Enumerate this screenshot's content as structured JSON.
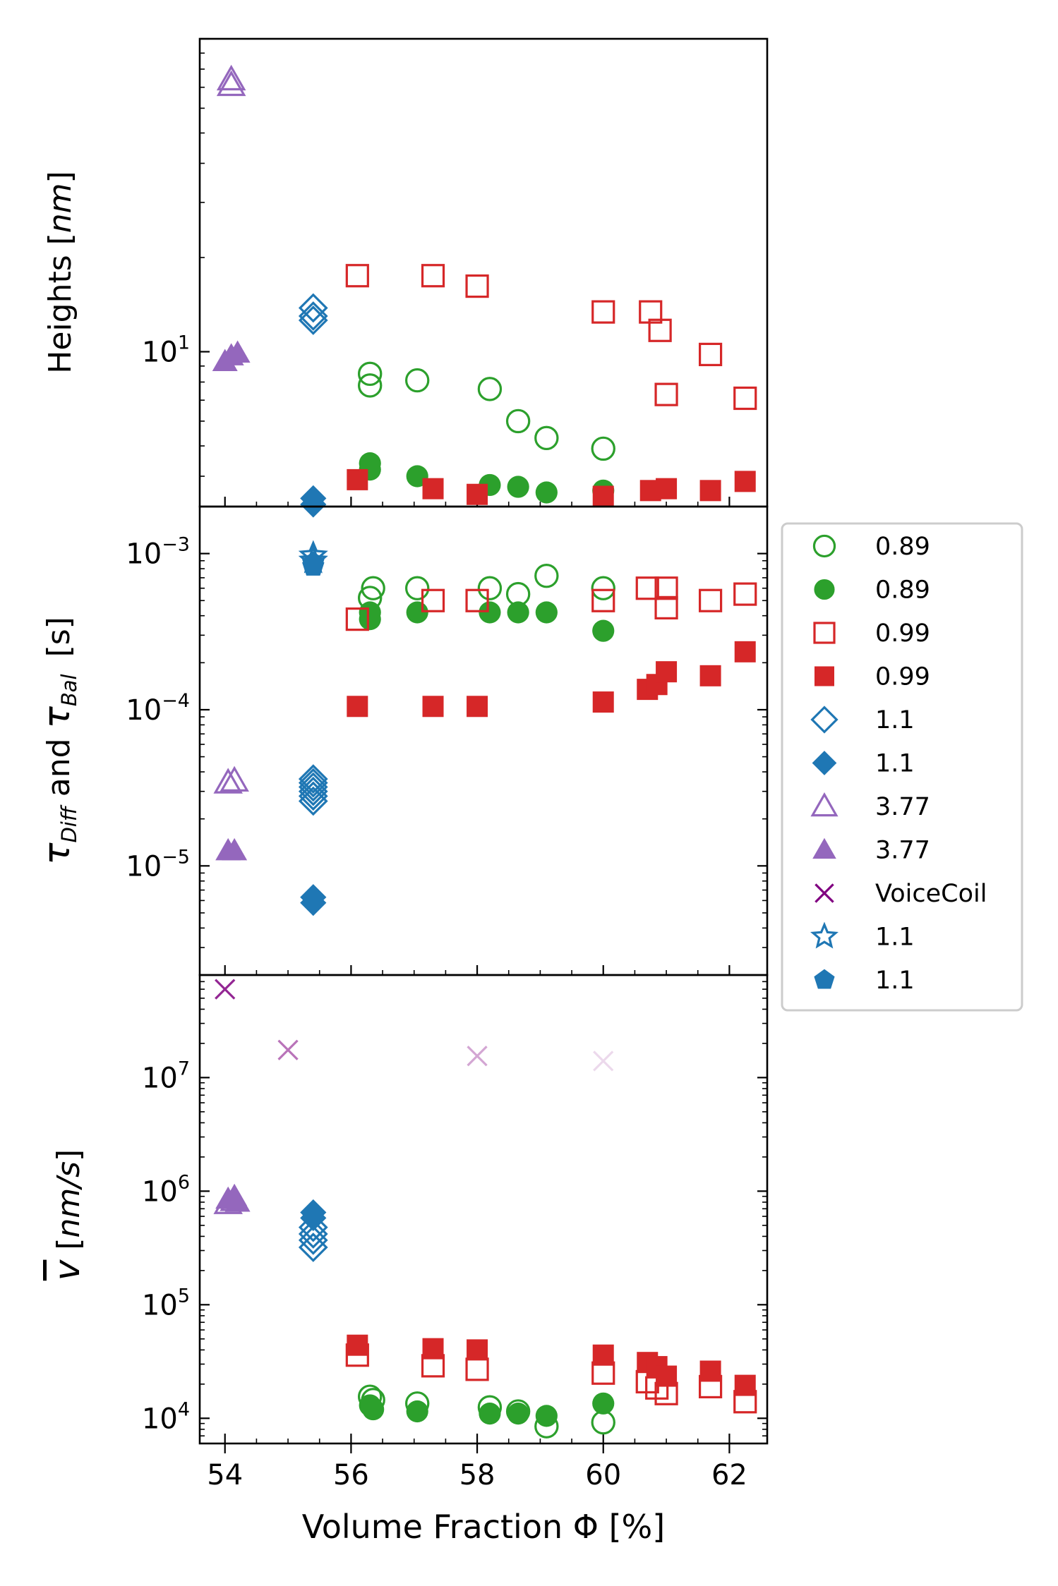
{
  "chart_data": [
    {
      "type": "scatter",
      "panel": "heights",
      "yscale": "log",
      "ylim": [
        3.2,
        100
      ],
      "xlim": [
        53.6,
        62.6
      ],
      "ylabel_plain": "Heights [",
      "ylabel_italic": "nm",
      "ylabel_close": "]",
      "y_ticks": [
        {
          "value": 10,
          "base": "10",
          "exp": "1"
        }
      ],
      "series": [
        {
          "name": "0.89",
          "marker": "circle",
          "filled": false,
          "color": "#2ca02c",
          "points": [
            [
              56.3,
              7.8
            ],
            [
              56.3,
              8.5
            ],
            [
              57.05,
              8.1
            ],
            [
              58.2,
              7.6
            ],
            [
              58.65,
              6.0
            ],
            [
              59.1,
              5.3
            ],
            [
              60.0,
              4.9
            ]
          ]
        },
        {
          "name": "0.89",
          "marker": "circle",
          "filled": true,
          "color": "#2ca02c",
          "points": [
            [
              56.3,
              4.2
            ],
            [
              56.3,
              4.4
            ],
            [
              57.05,
              4.0
            ],
            [
              58.2,
              3.75
            ],
            [
              58.65,
              3.7
            ],
            [
              59.1,
              3.55
            ],
            [
              60.0,
              3.6
            ]
          ]
        },
        {
          "name": "0.99",
          "marker": "square",
          "filled": false,
          "color": "#d62728",
          "points": [
            [
              56.1,
              17.5
            ],
            [
              57.3,
              17.5
            ],
            [
              58.0,
              16.2
            ],
            [
              60.0,
              13.4
            ],
            [
              60.75,
              13.4
            ],
            [
              60.9,
              11.7
            ],
            [
              61.0,
              7.3
            ],
            [
              61.7,
              9.8
            ],
            [
              62.25,
              7.1
            ]
          ]
        },
        {
          "name": "0.99",
          "marker": "square",
          "filled": true,
          "color": "#d62728",
          "points": [
            [
              56.1,
              3.9
            ],
            [
              57.3,
              3.65
            ],
            [
              58.0,
              3.5
            ],
            [
              60.0,
              3.45
            ],
            [
              60.75,
              3.6
            ],
            [
              61.0,
              3.65
            ],
            [
              61.7,
              3.6
            ],
            [
              62.25,
              3.85
            ]
          ]
        },
        {
          "name": "1.1",
          "marker": "diamond",
          "filled": false,
          "color": "#1f77b4",
          "points": [
            [
              55.4,
              13.0
            ],
            [
              55.4,
              13.8
            ],
            [
              55.4,
              12.6
            ]
          ]
        },
        {
          "name": "1.1",
          "marker": "diamond",
          "filled": true,
          "color": "#1f77b4",
          "points": [
            [
              55.4,
              3.4
            ],
            [
              55.4,
              3.25
            ]
          ]
        },
        {
          "name": "3.77",
          "marker": "triangle",
          "filled": false,
          "color": "#9467bd",
          "points": [
            [
              54.1,
              71
            ],
            [
              54.1,
              74
            ]
          ]
        },
        {
          "name": "3.77",
          "marker": "triangle",
          "filled": true,
          "color": "#9467bd",
          "points": [
            [
              54.0,
              9.3
            ],
            [
              54.1,
              9.7
            ],
            [
              54.2,
              9.9
            ]
          ]
        }
      ]
    },
    {
      "type": "scatter",
      "panel": "tau",
      "yscale": "log",
      "ylim": [
        2e-06,
        0.002
      ],
      "xlim": [
        53.6,
        62.6
      ],
      "ylabel_tau": "τ",
      "ylabel_sub1": "Diff",
      "ylabel_and": " and ",
      "ylabel_sub2": "Bal",
      "ylabel_unit": "[s]",
      "y_ticks": [
        {
          "value": 0.001,
          "base": "10",
          "exp": "−3"
        },
        {
          "value": 0.0001,
          "base": "10",
          "exp": "−4"
        },
        {
          "value": 1e-05,
          "base": "10",
          "exp": "−5"
        }
      ],
      "series": [
        {
          "name": "0.89",
          "marker": "circle",
          "filled": false,
          "color": "#2ca02c",
          "points": [
            [
              56.3,
              0.00052
            ],
            [
              56.35,
              0.0006
            ],
            [
              57.05,
              0.0006
            ],
            [
              58.2,
              0.0006
            ],
            [
              58.65,
              0.00055
            ],
            [
              59.1,
              0.00072
            ],
            [
              60.0,
              0.0006
            ]
          ]
        },
        {
          "name": "0.89",
          "marker": "circle",
          "filled": true,
          "color": "#2ca02c",
          "points": [
            [
              56.3,
              0.00038
            ],
            [
              56.3,
              0.00042
            ],
            [
              57.05,
              0.00042
            ],
            [
              58.2,
              0.00042
            ],
            [
              58.65,
              0.00042
            ],
            [
              59.1,
              0.00042
            ],
            [
              60.0,
              0.00032
            ]
          ]
        },
        {
          "name": "0.99",
          "marker": "square",
          "filled": false,
          "color": "#d62728",
          "points": [
            [
              56.1,
              0.00038
            ],
            [
              57.3,
              0.0005
            ],
            [
              58.0,
              0.0005
            ],
            [
              60.0,
              0.0005
            ],
            [
              60.7,
              0.0006
            ],
            [
              61.0,
              0.0006
            ],
            [
              61.0,
              0.00045
            ],
            [
              61.7,
              0.0005
            ],
            [
              62.25,
              0.00055
            ]
          ]
        },
        {
          "name": "0.99",
          "marker": "square",
          "filled": true,
          "color": "#d62728",
          "points": [
            [
              56.1,
              0.000105
            ],
            [
              57.3,
              0.000105
            ],
            [
              58.0,
              0.000105
            ],
            [
              60.0,
              0.000112
            ],
            [
              60.7,
              0.000135
            ],
            [
              60.85,
              0.000145
            ],
            [
              61.0,
              0.000175
            ],
            [
              61.7,
              0.000165
            ],
            [
              62.25,
              0.000235
            ]
          ]
        },
        {
          "name": "1.1",
          "marker": "diamond",
          "filled": false,
          "color": "#1f77b4",
          "points": [
            [
              55.4,
              2.6e-05
            ],
            [
              55.4,
              2.8e-05
            ],
            [
              55.4,
              3e-05
            ],
            [
              55.4,
              3.2e-05
            ],
            [
              55.4,
              3.4e-05
            ],
            [
              55.4,
              3.6e-05
            ]
          ]
        },
        {
          "name": "1.1",
          "marker": "diamond",
          "filled": true,
          "color": "#1f77b4",
          "points": [
            [
              55.4,
              6.3e-06
            ],
            [
              55.4,
              5.8e-06
            ]
          ]
        },
        {
          "name": "3.77",
          "marker": "triangle",
          "filled": false,
          "color": "#9467bd",
          "points": [
            [
              54.05,
              3.4e-05
            ],
            [
              54.15,
              3.5e-05
            ]
          ]
        },
        {
          "name": "3.77",
          "marker": "triangle",
          "filled": true,
          "color": "#9467bd",
          "points": [
            [
              54.05,
              1.25e-05
            ],
            [
              54.15,
              1.25e-05
            ]
          ]
        },
        {
          "name": "1.1",
          "marker": "star",
          "filled": false,
          "color": "#1f77b4",
          "points": [
            [
              55.4,
              0.00097
            ],
            [
              55.4,
              0.0009
            ]
          ]
        },
        {
          "name": "1.1",
          "marker": "pentagon",
          "filled": true,
          "color": "#1f77b4",
          "points": [
            [
              55.4,
              0.00083
            ],
            [
              55.4,
              0.00087
            ]
          ]
        }
      ]
    },
    {
      "type": "scatter",
      "panel": "velocity",
      "yscale": "log",
      "ylim": [
        6000,
        80000000
      ],
      "xlim": [
        53.6,
        62.6
      ],
      "xlabel": "Volume Fraction Φ [%]",
      "x_ticks": [
        "54",
        "56",
        "58",
        "60",
        "62"
      ],
      "ylabel_v": "v",
      "ylabel_italic": "nm/s",
      "ylabel_open": "[",
      "ylabel_close": "]",
      "y_ticks": [
        {
          "value": 10000000,
          "base": "10",
          "exp": "7"
        },
        {
          "value": 1000000,
          "base": "10",
          "exp": "6"
        },
        {
          "value": 100000,
          "base": "10",
          "exp": "5"
        },
        {
          "value": 10000,
          "base": "10",
          "exp": "4"
        }
      ],
      "series": [
        {
          "name": "VoiceCoil",
          "marker": "x",
          "filled": false,
          "color": "#800080",
          "points": [
            [
              54.0,
              60000000
            ],
            [
              55.0,
              17500000
            ],
            [
              58.0,
              15500000
            ],
            [
              60.0,
              14000000
            ]
          ],
          "alphas": [
            0.85,
            0.55,
            0.35,
            0.15
          ]
        },
        {
          "name": "0.89",
          "marker": "circle",
          "filled": false,
          "color": "#2ca02c",
          "points": [
            [
              56.3,
              15500
            ],
            [
              56.35,
              14500
            ],
            [
              57.05,
              13500
            ],
            [
              58.2,
              12500
            ],
            [
              58.65,
              11500
            ],
            [
              59.1,
              8500
            ],
            [
              60.0,
              9200
            ]
          ]
        },
        {
          "name": "0.89",
          "marker": "circle",
          "filled": true,
          "color": "#2ca02c",
          "points": [
            [
              56.3,
              13000
            ],
            [
              56.35,
              12000
            ],
            [
              57.05,
              11500
            ],
            [
              58.2,
              11000
            ],
            [
              58.65,
              11000
            ],
            [
              59.1,
              10500
            ],
            [
              60.0,
              13500
            ]
          ]
        },
        {
          "name": "0.99",
          "marker": "square",
          "filled": false,
          "color": "#d62728",
          "points": [
            [
              56.1,
              36000
            ],
            [
              57.3,
              29000
            ],
            [
              58.0,
              27000
            ],
            [
              60.0,
              25000
            ],
            [
              60.7,
              21000
            ],
            [
              60.85,
              18500
            ],
            [
              61.0,
              16500
            ],
            [
              61.7,
              19000
            ],
            [
              62.25,
              14000
            ]
          ]
        },
        {
          "name": "0.99",
          "marker": "square",
          "filled": true,
          "color": "#d62728",
          "points": [
            [
              56.1,
              44000
            ],
            [
              57.3,
              41000
            ],
            [
              58.0,
              40000
            ],
            [
              60.0,
              36000
            ],
            [
              60.7,
              31000
            ],
            [
              60.85,
              28500
            ],
            [
              61.0,
              23500
            ],
            [
              61.7,
              26000
            ],
            [
              62.25,
              19500
            ]
          ]
        },
        {
          "name": "1.1",
          "marker": "diamond",
          "filled": false,
          "color": "#1f77b4",
          "points": [
            [
              55.4,
              320000
            ],
            [
              55.4,
              370000
            ],
            [
              55.4,
              420000
            ],
            [
              55.4,
              480000
            ]
          ]
        },
        {
          "name": "1.1",
          "marker": "diamond",
          "filled": true,
          "color": "#1f77b4",
          "points": [
            [
              55.4,
              650000
            ],
            [
              55.4,
              580000
            ]
          ]
        },
        {
          "name": "3.77",
          "marker": "triangle",
          "filled": false,
          "color": "#9467bd",
          "points": [
            [
              54.05,
              780000
            ],
            [
              54.15,
              830000
            ]
          ]
        },
        {
          "name": "3.77",
          "marker": "triangle",
          "filled": true,
          "color": "#9467bd",
          "points": [
            [
              54.05,
              850000
            ],
            [
              54.15,
              900000
            ],
            [
              54.2,
              800000
            ]
          ]
        }
      ]
    }
  ],
  "legend": {
    "placement": "right of middle panel",
    "entries": [
      {
        "label": "0.89",
        "marker": "circle",
        "filled": false,
        "color": "#2ca02c"
      },
      {
        "label": "0.89",
        "marker": "circle",
        "filled": true,
        "color": "#2ca02c"
      },
      {
        "label": "0.99",
        "marker": "square",
        "filled": false,
        "color": "#d62728"
      },
      {
        "label": "0.99",
        "marker": "square",
        "filled": true,
        "color": "#d62728"
      },
      {
        "label": "1.1",
        "marker": "diamond",
        "filled": false,
        "color": "#1f77b4"
      },
      {
        "label": "1.1",
        "marker": "diamond",
        "filled": true,
        "color": "#1f77b4"
      },
      {
        "label": "3.77",
        "marker": "triangle",
        "filled": false,
        "color": "#9467bd"
      },
      {
        "label": "3.77",
        "marker": "triangle",
        "filled": true,
        "color": "#9467bd"
      },
      {
        "label": "VoiceCoil",
        "marker": "x",
        "filled": false,
        "color": "#800080"
      },
      {
        "label": "1.1",
        "marker": "star",
        "filled": false,
        "color": "#1f77b4"
      },
      {
        "label": "1.1",
        "marker": "pentagon",
        "filled": true,
        "color": "#1f77b4"
      }
    ]
  }
}
